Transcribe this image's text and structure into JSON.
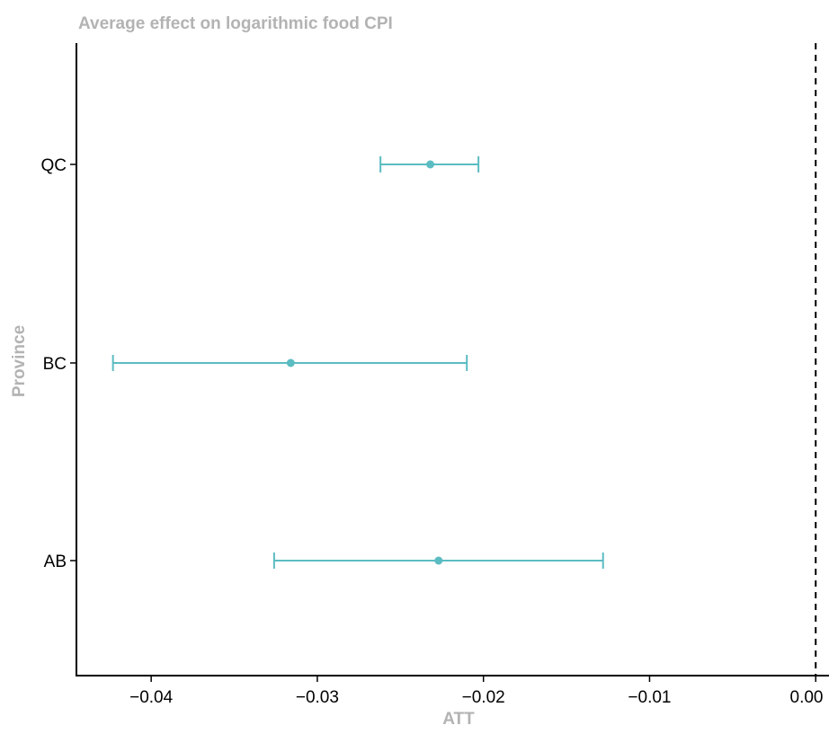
{
  "chart_data": {
    "type": "errorbar",
    "title": "Average effect on logarithmic food CPI",
    "xlabel": "ATT",
    "ylabel": "Province",
    "xlim": [
      -0.0445,
      0.0008
    ],
    "x_ticks": [
      -0.04,
      -0.03,
      -0.02,
      -0.01,
      0.0
    ],
    "x_tick_labels": [
      "−0.04",
      "−0.03",
      "−0.02",
      "−0.01",
      "0.00"
    ],
    "categories": [
      "QC",
      "BC",
      "AB"
    ],
    "points": [
      {
        "province": "QC",
        "estimate": -0.0232,
        "lower": -0.0262,
        "upper": -0.0203
      },
      {
        "province": "BC",
        "estimate": -0.0316,
        "lower": -0.0423,
        "upper": -0.021
      },
      {
        "province": "AB",
        "estimate": -0.0227,
        "lower": -0.0326,
        "upper": -0.0128
      }
    ],
    "reference_line": {
      "x": 0.0,
      "style": "dashed"
    },
    "grid": false,
    "colors": {
      "series": "#5bbcc2",
      "axis": "#000000",
      "title": "#b3b3b3"
    }
  }
}
